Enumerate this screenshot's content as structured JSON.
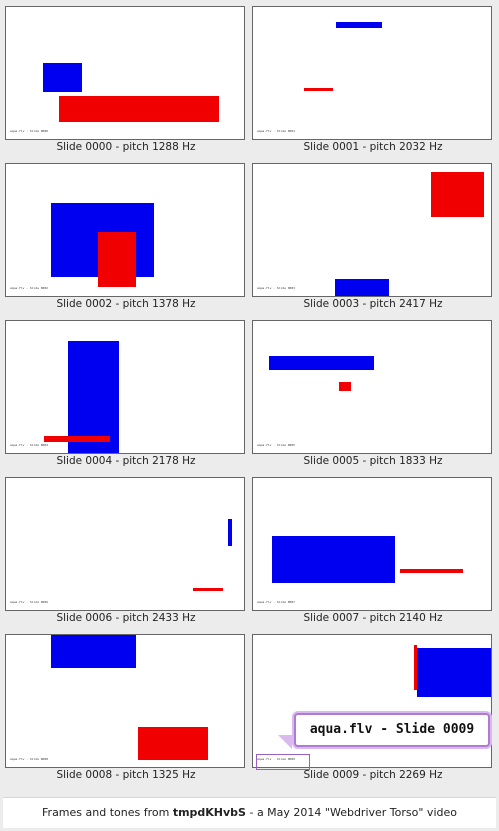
{
  "slides": [
    {
      "id": "0000",
      "label": "aqua.flv - Slide 0000",
      "caption": "Slide 0000 - pitch 1288 Hz"
    },
    {
      "id": "0001",
      "label": "aqua.flv - Slide 0001",
      "caption": "Slide 0001 - pitch 2032 Hz"
    },
    {
      "id": "0002",
      "label": "aqua.flv - Slide 0002",
      "caption": "Slide 0002 - pitch 1378 Hz"
    },
    {
      "id": "0003",
      "label": "aqua.flv - Slide 0003",
      "caption": "Slide 0003 - pitch 2417 Hz"
    },
    {
      "id": "0004",
      "label": "aqua.flv - Slide 0004",
      "caption": "Slide 0004 - pitch 2178 Hz"
    },
    {
      "id": "0005",
      "label": "aqua.flv - Slide 0005",
      "caption": "Slide 0005 - pitch 1833 Hz"
    },
    {
      "id": "0006",
      "label": "aqua.flv - Slide 0006",
      "caption": "Slide 0006 - pitch 2433 Hz"
    },
    {
      "id": "0007",
      "label": "aqua.flv - Slide 0007",
      "caption": "Slide 0007 - pitch 2140 Hz"
    },
    {
      "id": "0008",
      "label": "aqua.flv - Slide 0008",
      "caption": "Slide 0008 - pitch 1325 Hz"
    },
    {
      "id": "0009",
      "label": "aqua.flv - Slide 0009",
      "caption": "Slide 0009 - pitch 2269 Hz"
    }
  ],
  "zoom_label": "aqua.flv - Slide 0009",
  "footer": {
    "prefix": "Frames and tones from ",
    "video_id": "tmpdKHvbS",
    "suffix": " - a May 2014 \"Webdriver Torso\" video"
  },
  "colors": {
    "blue": "#0000f0",
    "red": "#f00000",
    "highlight": "#b07ad0"
  }
}
